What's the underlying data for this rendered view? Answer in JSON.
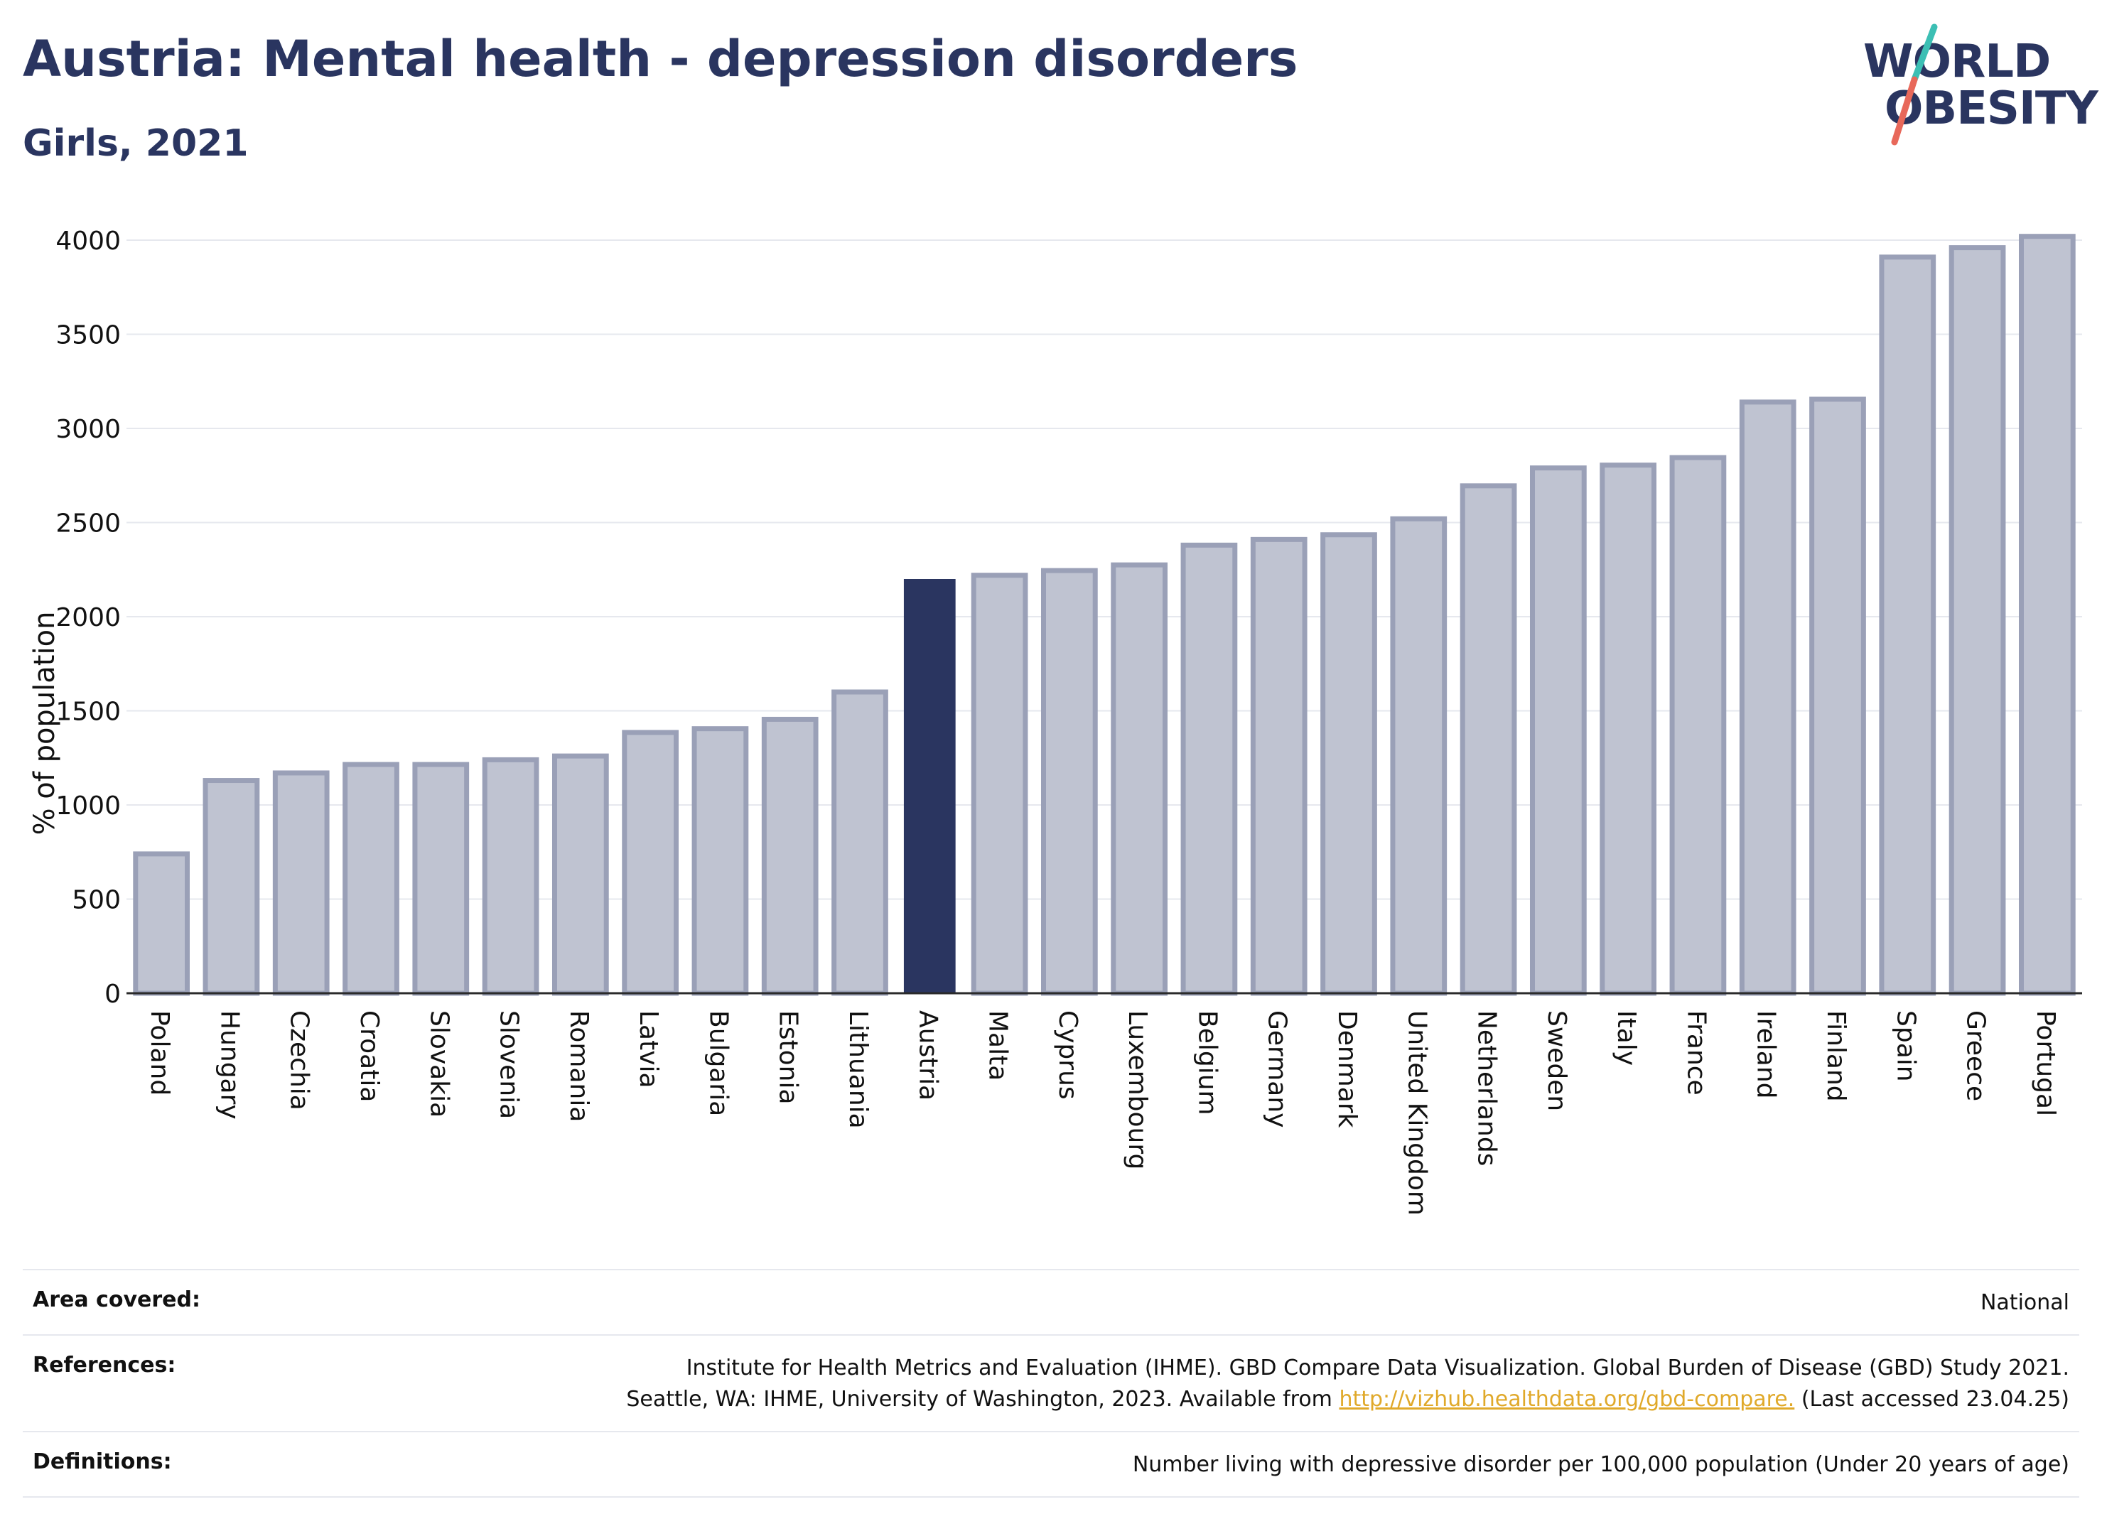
{
  "header": {
    "title": "Austria: Mental health - depression disorders",
    "subtitle": "Girls, 2021"
  },
  "logo": {
    "line1": "WORLD",
    "line2": "OBESITY",
    "colors": {
      "text": "#2a3560",
      "slash_top": "#3cbfb4",
      "slash_bottom": "#e8685a"
    }
  },
  "colors": {
    "highlight": "#2a3560",
    "bar_fill": "#bfc3d1",
    "bar_stroke": "#9aa0b7",
    "grid": "#e6e8ee"
  },
  "chart_data": {
    "type": "bar",
    "title": "Austria: Mental health - depression disorders",
    "subtitle": "Girls, 2021",
    "xlabel": "",
    "ylabel": "% of population",
    "ylim": [
      0,
      4000
    ],
    "yticks": [
      0,
      500,
      1000,
      1500,
      2000,
      2500,
      3000,
      3500,
      4000
    ],
    "grid": true,
    "legend": "none",
    "highlight": "Austria",
    "categories": [
      "Poland",
      "Hungary",
      "Czechia",
      "Croatia",
      "Slovakia",
      "Slovenia",
      "Romania",
      "Latvia",
      "Bulgaria",
      "Estonia",
      "Lithuania",
      "Austria",
      "Malta",
      "Cyprus",
      "Luxembourg",
      "Belgium",
      "Germany",
      "Denmark",
      "United Kingdom",
      "Netherlands",
      "Sweden",
      "Italy",
      "France",
      "Ireland",
      "Finland",
      "Spain",
      "Greece",
      "Portugal"
    ],
    "values": [
      740,
      1130,
      1170,
      1215,
      1215,
      1240,
      1260,
      1385,
      1405,
      1455,
      1600,
      2200,
      2220,
      2245,
      2275,
      2380,
      2410,
      2435,
      2520,
      2695,
      2790,
      2805,
      2845,
      3140,
      3155,
      3910,
      3960,
      4020
    ]
  },
  "footer": {
    "area_label": "Area covered:",
    "area_value": "National",
    "references_label": "References:",
    "references_line1": "Institute for Health Metrics and Evaluation (IHME). GBD Compare Data Visualization. Global Burden of Disease (GBD) Study 2021.",
    "references_line2_pre": "Seattle, WA: IHME, University of Washington, 2023. Available from ",
    "references_link": "http://vizhub.healthdata.org/gbd-compare.",
    "references_line2_post": " (Last accessed 23.04.25)",
    "definitions_label": "Definitions:",
    "definitions_value": "Number living with depressive disorder per 100,000 population (Under 20 years of age)"
  }
}
